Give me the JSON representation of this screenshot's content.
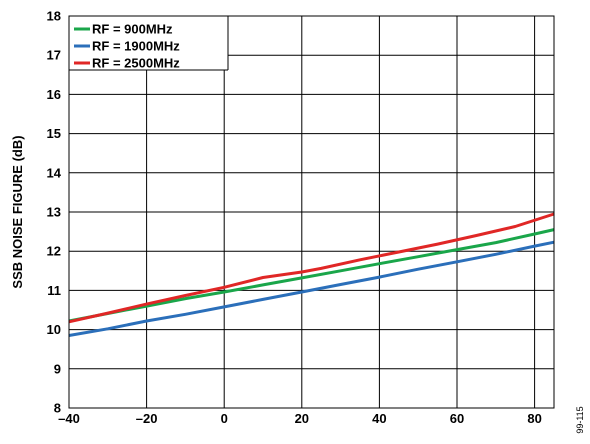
{
  "chart_data": {
    "type": "line",
    "ylabel": "SSB NOISE FIGURE (dB)",
    "xlim": [
      -40,
      85
    ],
    "ylim": [
      8,
      18
    ],
    "x_ticks": [
      -40,
      -20,
      0,
      20,
      40,
      60,
      80
    ],
    "x_tick_labels": [
      "–40",
      "–20",
      "0",
      "20",
      "40",
      "60",
      "80"
    ],
    "y_ticks": [
      8,
      9,
      10,
      11,
      12,
      13,
      14,
      15,
      16,
      17,
      18
    ],
    "grid": true,
    "legend_position": "top-left",
    "series": [
      {
        "name": "RF = 900MHz",
        "color": "#1aa64a",
        "points": [
          [
            -40,
            10.22
          ],
          [
            -30,
            10.41
          ],
          [
            -20,
            10.6
          ],
          [
            -10,
            10.79
          ],
          [
            0,
            10.96
          ],
          [
            10,
            11.14
          ],
          [
            20,
            11.32
          ],
          [
            30,
            11.5
          ],
          [
            40,
            11.68
          ],
          [
            50,
            11.86
          ],
          [
            60,
            12.04
          ],
          [
            70,
            12.22
          ],
          [
            80,
            12.44
          ],
          [
            85,
            12.55
          ]
        ]
      },
      {
        "name": "RF = 1900MHz",
        "color": "#2b6fba",
        "points": [
          [
            -40,
            9.85
          ],
          [
            -30,
            10.02
          ],
          [
            -20,
            10.22
          ],
          [
            -10,
            10.39
          ],
          [
            0,
            10.58
          ],
          [
            10,
            10.77
          ],
          [
            20,
            10.96
          ],
          [
            30,
            11.15
          ],
          [
            40,
            11.34
          ],
          [
            50,
            11.54
          ],
          [
            60,
            11.73
          ],
          [
            70,
            11.92
          ],
          [
            80,
            12.13
          ],
          [
            85,
            12.23
          ]
        ]
      },
      {
        "name": "RF = 2500MHz",
        "color": "#e02726",
        "points": [
          [
            -40,
            10.2
          ],
          [
            -30,
            10.42
          ],
          [
            -20,
            10.65
          ],
          [
            -10,
            10.87
          ],
          [
            0,
            11.08
          ],
          [
            10,
            11.33
          ],
          [
            20,
            11.47
          ],
          [
            25,
            11.56
          ],
          [
            35,
            11.78
          ],
          [
            45,
            11.98
          ],
          [
            55,
            12.18
          ],
          [
            65,
            12.4
          ],
          [
            75,
            12.63
          ],
          [
            85,
            12.95
          ]
        ]
      }
    ]
  },
  "figure_id": "99-115"
}
